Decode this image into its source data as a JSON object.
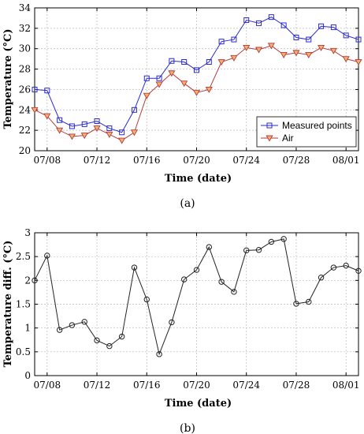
{
  "chart_data": [
    {
      "type": "line",
      "panel_label": "(a)",
      "xlabel": "Time (date)",
      "ylabel": "Temperature (°C)",
      "ylim": [
        20,
        34
      ],
      "yticks": [
        20,
        22,
        24,
        26,
        28,
        30,
        32,
        34
      ],
      "xlim": [
        "07/07",
        "08/02"
      ],
      "xticks": [
        "07/08",
        "07/12",
        "07/16",
        "07/20",
        "07/24",
        "07/28",
        "08/01"
      ],
      "grid": true,
      "legend_position": "bottom-right",
      "x": [
        "07/07",
        "07/08",
        "07/09",
        "07/10",
        "07/11",
        "07/12",
        "07/13",
        "07/14",
        "07/15",
        "07/16",
        "07/17",
        "07/18",
        "07/19",
        "07/20",
        "07/21",
        "07/22",
        "07/23",
        "07/24",
        "07/25",
        "07/26",
        "07/27",
        "07/28",
        "07/29",
        "07/30",
        "07/31",
        "08/01",
        "08/02"
      ],
      "series": [
        {
          "name": "Measured points",
          "color": "#2a2ad0",
          "marker": "square",
          "values": [
            26.0,
            25.9,
            23.0,
            22.4,
            22.6,
            22.9,
            22.2,
            21.8,
            24.0,
            27.1,
            27.1,
            28.8,
            28.7,
            27.9,
            28.7,
            30.7,
            30.9,
            32.8,
            32.5,
            33.1,
            32.3,
            31.1,
            30.9,
            32.2,
            32.1,
            31.3,
            30.9
          ]
        },
        {
          "name": "Air",
          "color": "#b83a3a",
          "marker": "triangle-down",
          "values": [
            24.0,
            23.4,
            22.0,
            21.4,
            21.5,
            22.2,
            21.6,
            21.0,
            21.8,
            25.4,
            26.5,
            27.6,
            26.6,
            25.7,
            26.0,
            28.7,
            29.1,
            30.1,
            29.9,
            30.3,
            29.4,
            29.6,
            29.4,
            30.1,
            29.8,
            29.0,
            28.7
          ]
        }
      ]
    },
    {
      "type": "line",
      "panel_label": "(b)",
      "xlabel": "Time (date)",
      "ylabel": "Temperature diff. (°C)",
      "ylim": [
        0,
        3
      ],
      "yticks": [
        0,
        0.5,
        1,
        1.5,
        2,
        2.5,
        3
      ],
      "xlim": [
        "07/07",
        "08/02"
      ],
      "xticks": [
        "07/08",
        "07/12",
        "07/16",
        "07/20",
        "07/24",
        "07/28",
        "08/01"
      ],
      "grid": true,
      "x": [
        "07/07",
        "07/08",
        "07/09",
        "07/10",
        "07/11",
        "07/12",
        "07/13",
        "07/14",
        "07/15",
        "07/16",
        "07/17",
        "07/18",
        "07/19",
        "07/20",
        "07/21",
        "07/22",
        "07/23",
        "07/24",
        "07/25",
        "07/26",
        "07/27",
        "07/28",
        "07/29",
        "07/30",
        "07/31",
        "08/01",
        "08/02"
      ],
      "series": [
        {
          "color": "#222222",
          "marker": "circle",
          "values": [
            2.0,
            2.52,
            0.96,
            1.06,
            1.13,
            0.74,
            0.62,
            0.82,
            2.27,
            1.6,
            0.45,
            1.12,
            2.02,
            2.22,
            2.7,
            1.97,
            1.76,
            2.63,
            2.64,
            2.81,
            2.87,
            1.51,
            1.55,
            2.06,
            2.27,
            2.31,
            2.2
          ]
        }
      ]
    }
  ]
}
